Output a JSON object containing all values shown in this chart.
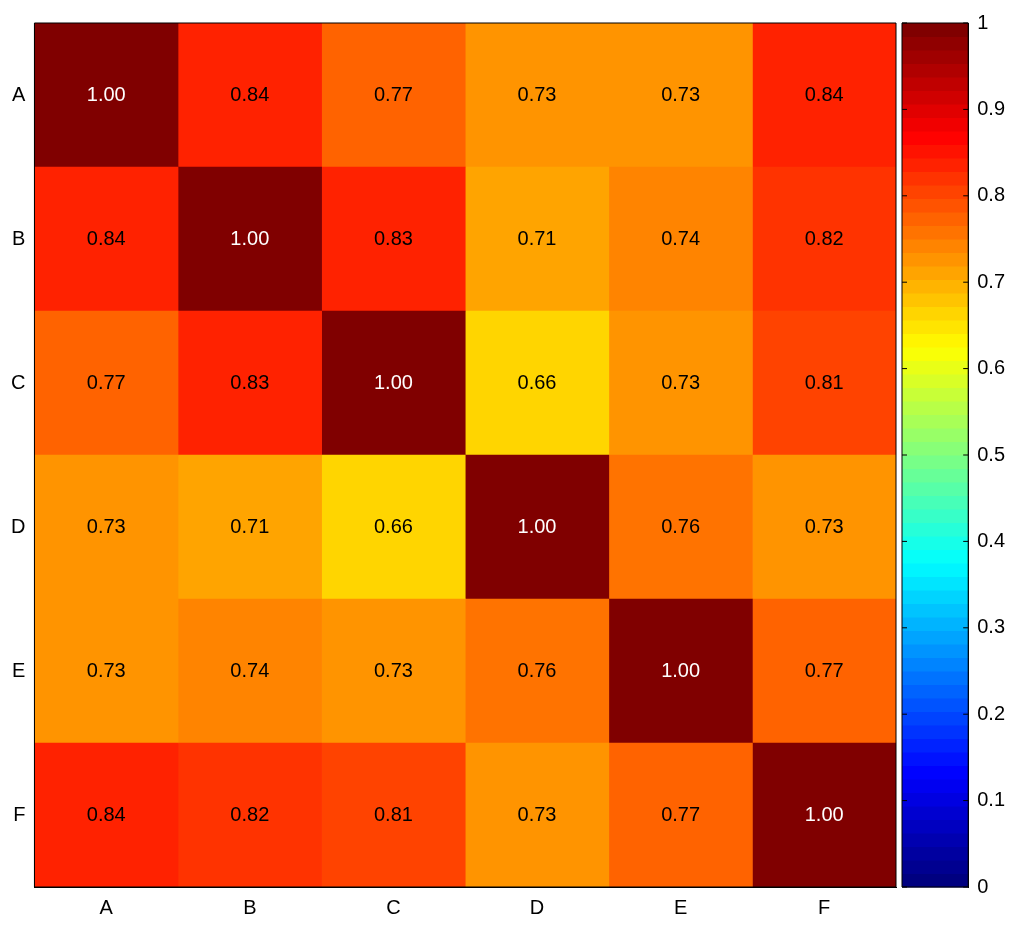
{
  "chart_data": {
    "type": "heatmap",
    "categories": [
      "A",
      "B",
      "C",
      "D",
      "E",
      "F"
    ],
    "y_categories": [
      "A",
      "B",
      "C",
      "D",
      "E",
      "F"
    ],
    "cells": [
      [
        1,
        0.84,
        0.77,
        0.73,
        0.73,
        0.84
      ],
      [
        0.84,
        1,
        0.83,
        0.71,
        0.74,
        0.82
      ],
      [
        0.77,
        0.83,
        1,
        0.66,
        0.73,
        0.81
      ],
      [
        0.73,
        0.71,
        0.66,
        1,
        0.76,
        0.73
      ],
      [
        0.73,
        0.74,
        0.73,
        0.76,
        1,
        0.77
      ],
      [
        0.84,
        0.82,
        0.81,
        0.73,
        0.77,
        1
      ]
    ],
    "cell_labels": [
      [
        "1.00",
        "0.84",
        "0.77",
        "0.73",
        "0.73",
        "0.84"
      ],
      [
        "0.84",
        "1.00",
        "0.83",
        "0.71",
        "0.74",
        "0.82"
      ],
      [
        "0.77",
        "0.83",
        "1.00",
        "0.66",
        "0.73",
        "0.81"
      ],
      [
        "0.73",
        "0.71",
        "0.66",
        "1.00",
        "0.76",
        "0.73"
      ],
      [
        "0.73",
        "0.74",
        "0.73",
        "0.76",
        "1.00",
        "0.77"
      ],
      [
        "0.84",
        "0.82",
        "0.81",
        "0.73",
        "0.77",
        "1.00"
      ]
    ],
    "clim": [
      0,
      1
    ],
    "cticks": [
      0,
      0.1,
      0.2,
      0.3,
      0.4,
      0.5,
      0.6,
      0.7,
      0.8,
      0.9,
      1
    ]
  }
}
